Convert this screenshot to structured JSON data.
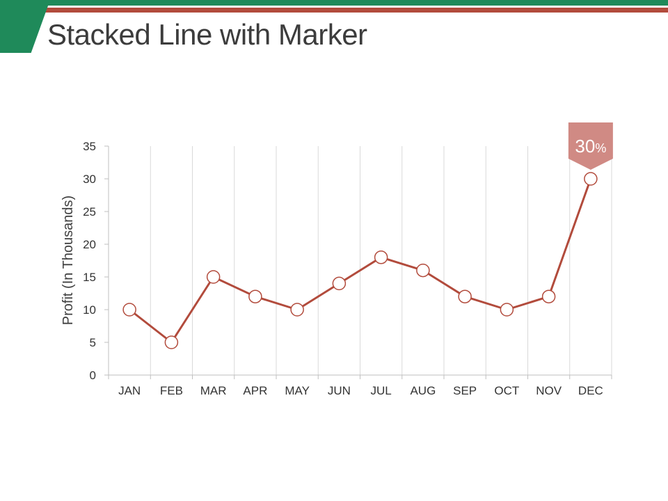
{
  "slide": {
    "title": "Stacked Line with Marker"
  },
  "colors": {
    "header_green": "#1f8a5a",
    "header_red": "#b24b3c",
    "line": "#b24b3c",
    "callout": "#d08a84",
    "grid": "#d9d9d9"
  },
  "chart_data": {
    "type": "line",
    "title": "",
    "xlabel": "",
    "ylabel": "Profit (In Thousands)",
    "categories": [
      "JAN",
      "FEB",
      "MAR",
      "APR",
      "MAY",
      "JUN",
      "JUL",
      "AUG",
      "SEP",
      "OCT",
      "NOV",
      "DEC"
    ],
    "series": [
      {
        "values": [
          10,
          5,
          15,
          12,
          10,
          14,
          18,
          16,
          12,
          10,
          12,
          30
        ]
      }
    ],
    "ylim": [
      0,
      35
    ],
    "yticks": [
      0,
      5,
      10,
      15,
      20,
      25,
      30,
      35
    ],
    "grid": "vertical",
    "legend": "none",
    "marker": "open-circle",
    "callout": {
      "category": "DEC",
      "value": "30",
      "unit": "%"
    }
  }
}
